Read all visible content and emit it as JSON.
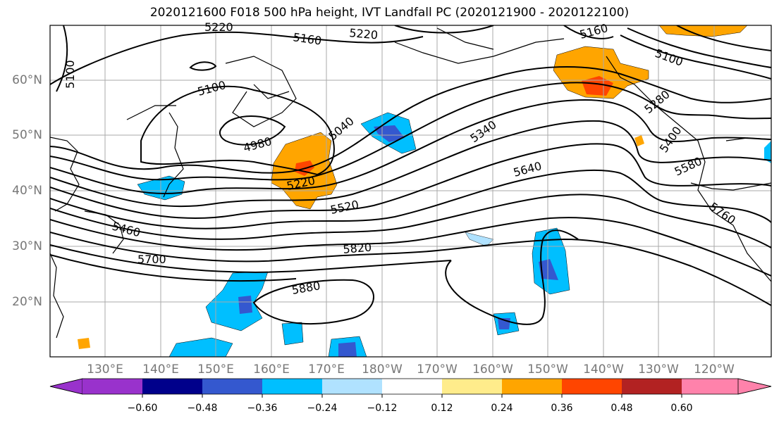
{
  "title": "2020121600 F018 500 hPa height, IVT Landfall PC (2020121900 - 2020122100)",
  "lat_labels": [
    "60°N",
    "50°N",
    "40°N",
    "30°N",
    "20°N"
  ],
  "lon_labels": [
    "130°E",
    "140°E",
    "150°E",
    "160°E",
    "170°E",
    "180°W",
    "170°W",
    "160°W",
    "150°W",
    "140°W",
    "130°W",
    "120°W"
  ],
  "contour_labels": {
    "c5220a": "5220",
    "c5160a": "5160",
    "c5220b": "5220",
    "c5160b": "5160",
    "c5100a": "5100",
    "c5100b": "5100",
    "c5100c": "5100",
    "c5040": "5040",
    "c4980": "4980",
    "c5340": "5340",
    "c5280": "5280",
    "c5400": "5400",
    "c5220c": "5220",
    "c5640": "5640",
    "c5580": "5580",
    "c5520": "5520",
    "c5460": "5460",
    "c5700": "5700",
    "c5820": "5820",
    "c5880": "5880",
    "c5760": "5760"
  },
  "colorbar": {
    "colors": [
      "#9932cc",
      "#00008b",
      "#3458cf",
      "#00bfff",
      "#b0e2ff",
      "#ffffff",
      "#ffec8b",
      "#ffa500",
      "#ff4500",
      "#b22222",
      "#ff82ab"
    ],
    "tick_labels": [
      "−0.60",
      "−0.48",
      "−0.36",
      "−0.24",
      "−0.12",
      "0.12",
      "0.24",
      "0.36",
      "0.48",
      "0.60"
    ]
  }
}
